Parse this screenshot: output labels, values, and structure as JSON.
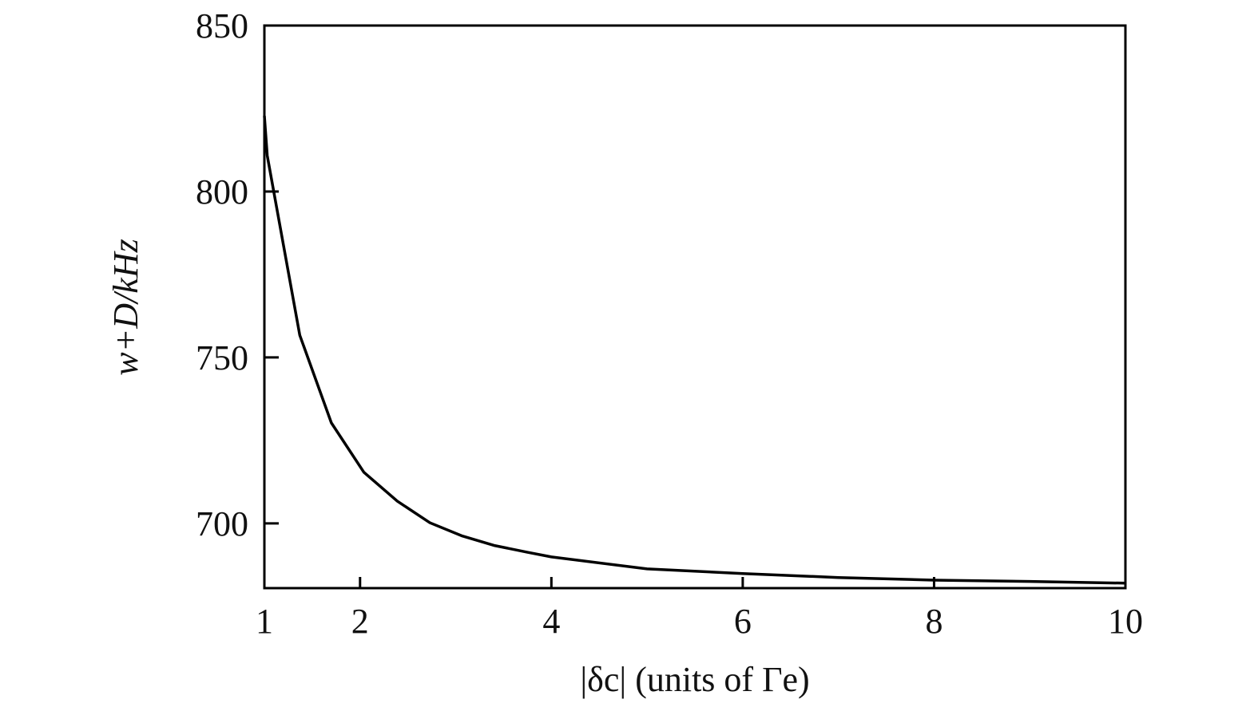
{
  "chart_data": {
    "type": "line",
    "x_label": "|δc| (units of Γe)",
    "y_label": "w+D/kHz",
    "x": [
      1,
      1.03,
      1.37,
      1.7,
      2.04,
      2.39,
      2.73,
      3.07,
      3.41,
      3.75,
      4,
      5,
      6,
      7,
      8,
      9,
      10
    ],
    "series": [
      {
        "color": "#000000",
        "values": [
          822.8,
          810.8,
          756.7,
          730.3,
          715.4,
          706.7,
          700.2,
          696.2,
          693.3,
          691.3,
          689.9,
          686.3,
          684.9,
          683.7,
          682.9,
          682.5,
          682.0
        ]
      }
    ],
    "xlim": [
      1,
      10
    ],
    "xticks": [
      1,
      2,
      4,
      6,
      8,
      10
    ],
    "ylim": [
      680.5,
      850
    ],
    "yticks": [
      700,
      750,
      800,
      850
    ],
    "grid": false
  }
}
